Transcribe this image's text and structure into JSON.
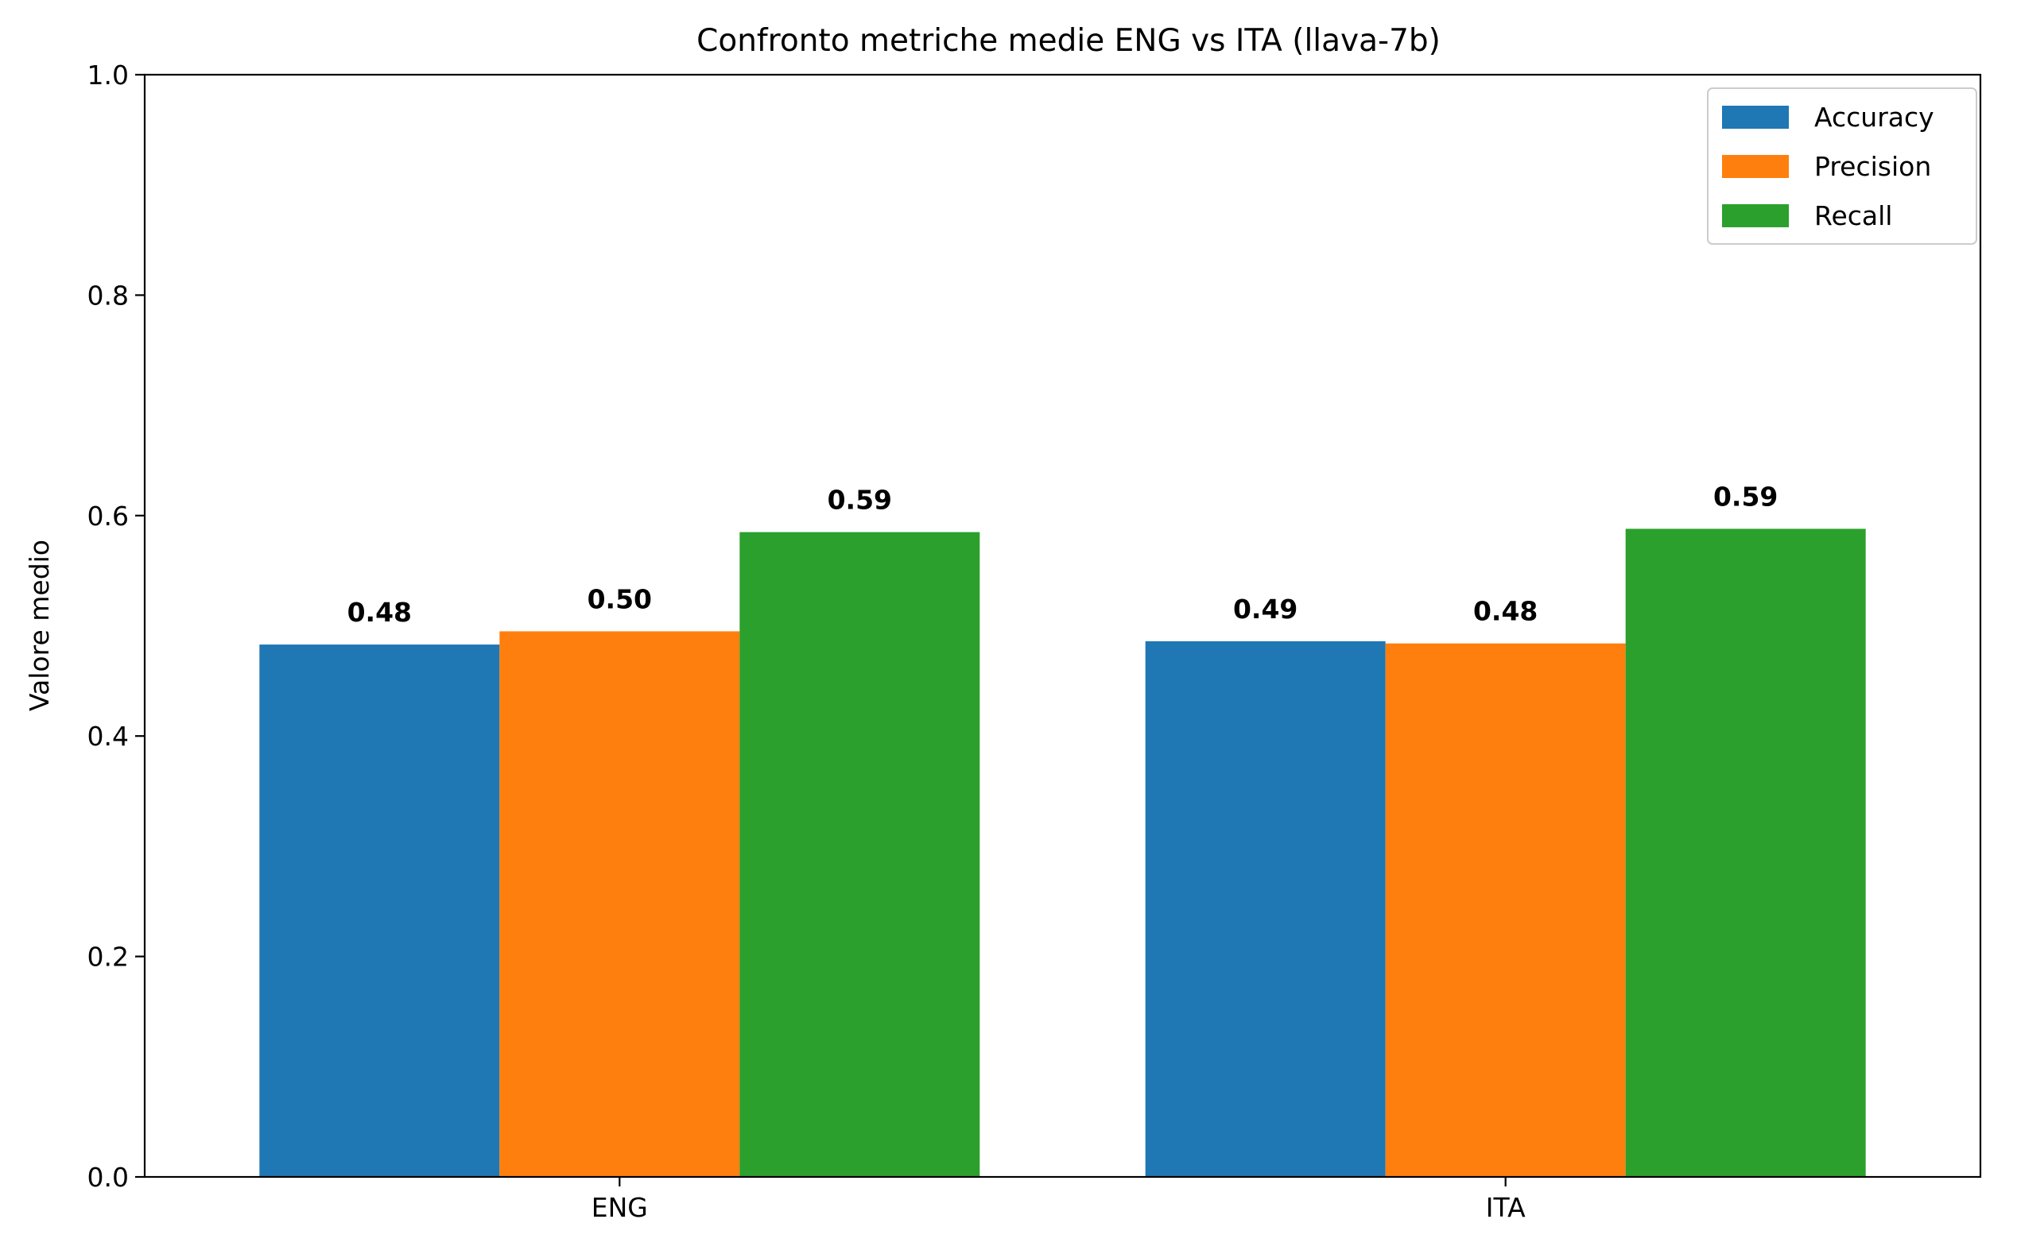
{
  "chart_data": {
    "type": "bar",
    "title": "Confronto metriche medie ENG vs ITA (llava-7b)",
    "xlabel": "",
    "ylabel": "Valore medio",
    "ylim": [
      0,
      1.0
    ],
    "yticks": [
      "0.0",
      "0.2",
      "0.4",
      "0.6",
      "0.8",
      "1.0"
    ],
    "categories": [
      "ENG",
      "ITA"
    ],
    "series": [
      {
        "name": "Accuracy",
        "color": "#1f77b4",
        "values": [
          0.483,
          0.486
        ],
        "labels": [
          "0.48",
          "0.49"
        ]
      },
      {
        "name": "Precision",
        "color": "#ff7f0e",
        "values": [
          0.495,
          0.484
        ],
        "labels": [
          "0.50",
          "0.48"
        ]
      },
      {
        "name": "Recall",
        "color": "#2ca02c",
        "values": [
          0.585,
          0.588
        ],
        "labels": [
          "0.59",
          "0.59"
        ]
      }
    ],
    "legend_position": "top-right",
    "grid": false
  }
}
